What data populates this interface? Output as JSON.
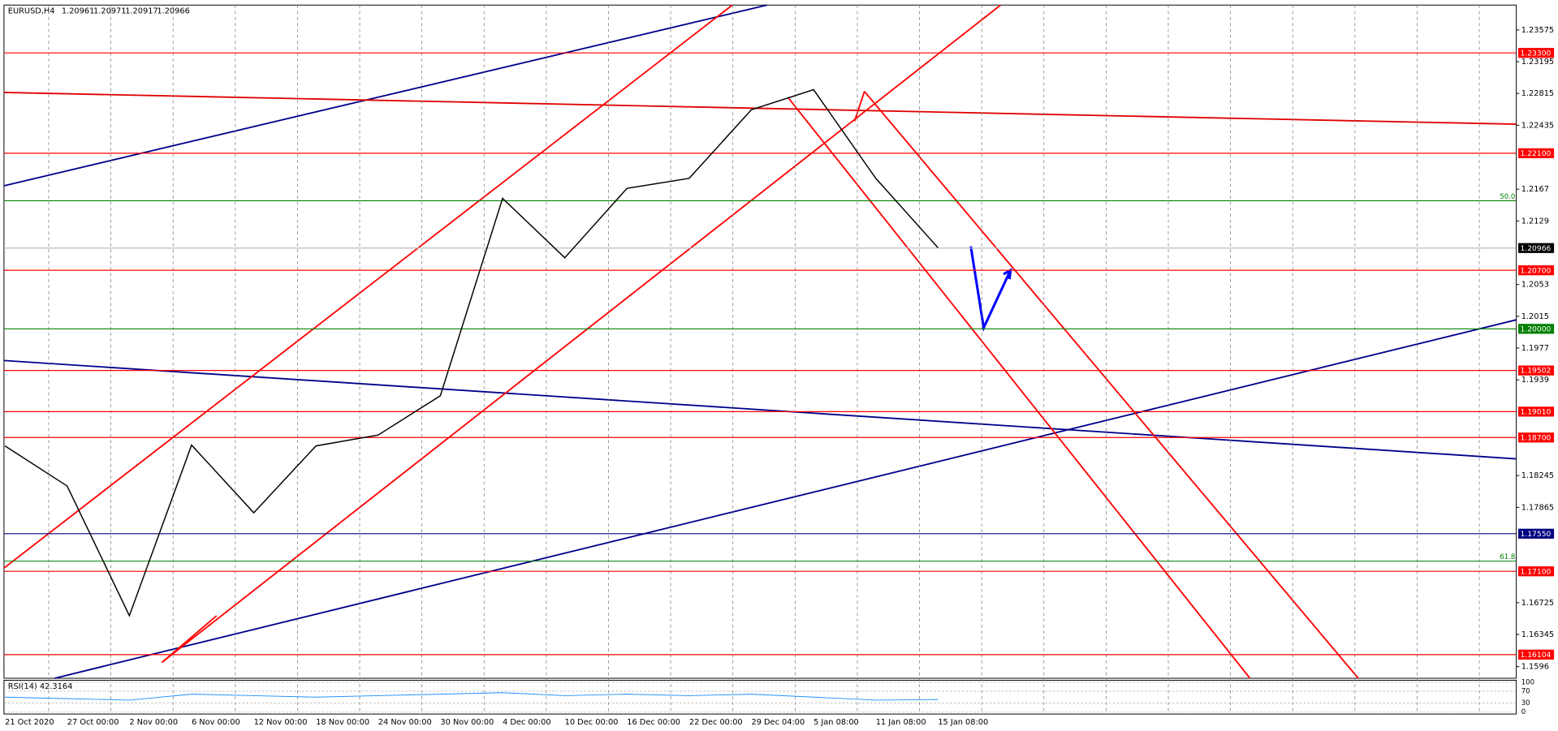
{
  "chart_data": {
    "type": "line",
    "title": "EURUSD,H4",
    "quote": [
      1.20961,
      1.20971,
      1.20917,
      1.20966
    ],
    "categories": [
      "21 Oct 2020",
      "27 Oct 00:00",
      "2 Nov 00:00",
      "6 Nov 00:00",
      "12 Nov 00:00",
      "18 Nov 00:00",
      "24 Nov 00:00",
      "30 Nov 00:00",
      "4 Dec 00:00",
      "10 Dec 00:00",
      "16 Dec 00:00",
      "22 Dec 00:00",
      "29 Dec 04:00",
      "5 Jan 08:00",
      "11 Jan 08:00",
      "15 Jan 08:00"
    ],
    "values": [
      1.186,
      1.1812,
      1.1657,
      1.1861,
      1.178,
      1.186,
      1.1873,
      1.192,
      1.2156,
      1.2085,
      1.2168,
      1.218,
      1.2262,
      1.2286,
      1.218,
      1.2097
    ],
    "color": "#000000",
    "ylim": [
      1.15821,
      1.23872
    ],
    "yticks": [
      1.23575,
      1.23195,
      1.22815,
      1.22435,
      1.2167,
      1.2129,
      1.2053,
      1.2015,
      1.1977,
      1.1939,
      1.18245,
      1.17865,
      1.16725,
      1.16345,
      1.1596
    ],
    "levels": [
      {
        "value": 1.233,
        "label": "1.23300",
        "color": "#ff0000"
      },
      {
        "value": 1.221,
        "label": "1.22100",
        "color": "#ff0000"
      },
      {
        "value": 1.20966,
        "label": "1.20966",
        "color": "#000000"
      },
      {
        "value": 1.207,
        "label": "1.20700",
        "color": "#ff0000"
      },
      {
        "value": 1.2,
        "label": "1.20000",
        "color": "#008000"
      },
      {
        "value": 1.19502,
        "label": "1.19502",
        "color": "#ff0000"
      },
      {
        "value": 1.1901,
        "label": "1.19010",
        "color": "#ff0000"
      },
      {
        "value": 1.187,
        "label": "1.18700",
        "color": "#ff0000"
      },
      {
        "value": 1.1755,
        "label": "1.17550",
        "color": "#000080"
      },
      {
        "value": 1.171,
        "label": "1.17100",
        "color": "#ff0000"
      },
      {
        "value": 1.16104,
        "label": "1.16104",
        "color": "#ff0000"
      }
    ],
    "fib_levels": [
      {
        "value": 1.21532,
        "label": "50.0"
      },
      {
        "value": 1.17222,
        "label": "61.8"
      }
    ],
    "rsi": {
      "title": "RSI(14) 42.3164",
      "ylim": [
        0,
        100
      ],
      "yticks": [
        100,
        70,
        30,
        0
      ],
      "values": [
        50,
        45,
        40,
        60,
        55,
        50,
        55,
        60,
        65,
        55,
        60,
        55,
        60,
        50,
        40,
        42
      ],
      "color": "#1e90ff"
    }
  }
}
